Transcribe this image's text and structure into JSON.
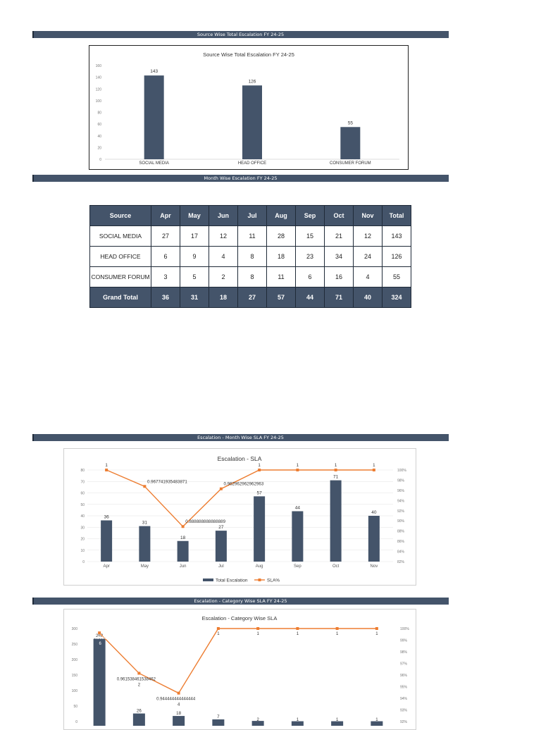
{
  "bands": {
    "b1": "Source Wise Total Escalation FY 24-25",
    "b2": "Month Wise Escalation FY 24-25",
    "b3": "Escalation - Month Wise SLA FY 24-25",
    "b4": "Escalation - Category  Wise SLA FY 24-25"
  },
  "colors": {
    "bar": "#44546a",
    "line": "#ed7d31",
    "band": "#44546a"
  },
  "table": {
    "headers": [
      "Source",
      "Apr",
      "May",
      "Jun",
      "Jul",
      "Aug",
      "Sep",
      "Oct",
      "Nov",
      "Total"
    ],
    "rows": [
      [
        "SOCIAL MEDIA",
        "27",
        "17",
        "12",
        "11",
        "28",
        "15",
        "21",
        "12",
        "143"
      ],
      [
        "HEAD OFFICE",
        "6",
        "9",
        "4",
        "8",
        "18",
        "23",
        "34",
        "24",
        "126"
      ],
      [
        "CONSUMER FORUM",
        "3",
        "5",
        "2",
        "8",
        "11",
        "6",
        "16",
        "4",
        "55"
      ]
    ],
    "total": [
      "Grand Total",
      "36",
      "31",
      "18",
      "27",
      "57",
      "44",
      "71",
      "40",
      "324"
    ]
  },
  "chart_data": [
    {
      "type": "bar",
      "title": "Source Wise Total Escalation FY 24-25",
      "categories": [
        "SOCIAL MEDIA",
        "HEAD OFFICE",
        "CONSUMER FORUM"
      ],
      "values": [
        143,
        126,
        55
      ],
      "data_labels": [
        "143",
        "126",
        "55"
      ],
      "ylim": [
        0,
        160
      ],
      "yticks": [
        "0",
        "20",
        "40",
        "60",
        "80",
        "100",
        "120",
        "140",
        "160"
      ],
      "grid": false
    },
    {
      "type": "bar",
      "title": "Escalation - SLA",
      "categories": [
        "Apr",
        "May",
        "Jun",
        "Jul",
        "Aug",
        "Sep",
        "Oct",
        "Nov"
      ],
      "series": [
        {
          "name": "Total Escalation",
          "kind": "bar",
          "axis": "left",
          "values": [
            36,
            31,
            18,
            27,
            57,
            44,
            71,
            40
          ],
          "labels": [
            "36",
            "31",
            "18",
            "27",
            "57",
            "44",
            "71",
            "40"
          ]
        },
        {
          "name": "SLA%",
          "kind": "line",
          "axis": "right",
          "values": [
            1,
            0.967741935483871,
            0.888888888888889,
            0.962962962962963,
            1,
            1,
            1,
            1
          ],
          "labels": [
            "1",
            "0.967741935483871",
            "0.888888888888889",
            "0.962962962962963",
            "1",
            "1",
            "1",
            "1"
          ]
        }
      ],
      "ylim": [
        0,
        80
      ],
      "yticks": [
        "0",
        "10",
        "20",
        "30",
        "40",
        "50",
        "60",
        "70",
        "80"
      ],
      "y2lim": [
        0.82,
        1.0
      ],
      "y2ticks": [
        "82%",
        "84%",
        "86%",
        "88%",
        "90%",
        "92%",
        "94%",
        "96%",
        "98%",
        "100%"
      ],
      "legend": "bottom",
      "grid": true
    },
    {
      "type": "bar",
      "title": "Escalation - Category Wise SLA",
      "categories": [
        "",
        "",
        "",
        "",
        "",
        "",
        "",
        ""
      ],
      "series": [
        {
          "name": "",
          "kind": "bar",
          "axis": "left",
          "values": [
            268,
            26,
            18,
            7,
            2,
            1,
            1,
            1
          ],
          "labels": [
            "268",
            "26",
            "18",
            "7",
            "",
            "",
            "",
            ""
          ]
        },
        {
          "name": "",
          "kind": "line",
          "axis": "right",
          "values": [
            0.9962686567,
            0.961538461538462,
            0.944444444444444,
            1,
            1,
            1,
            1,
            1
          ],
          "labels": [
            "0.9962686567",
            "0.961538461538462",
            "0.944444444444444",
            "1",
            "1",
            "1",
            "1",
            "1"
          ]
        }
      ],
      "counts": [
        "6",
        "2",
        "4",
        "",
        "2",
        "1",
        "1",
        "1"
      ],
      "ylim": [
        0,
        300
      ],
      "yticks": [
        "0",
        "50",
        "100",
        "150",
        "200",
        "250",
        "300"
      ],
      "y2lim": [
        0.92,
        1.0
      ],
      "y2ticks": [
        "92%",
        "93%",
        "94%",
        "95%",
        "96%",
        "97%",
        "98%",
        "99%",
        "100%"
      ],
      "grid": false
    }
  ]
}
